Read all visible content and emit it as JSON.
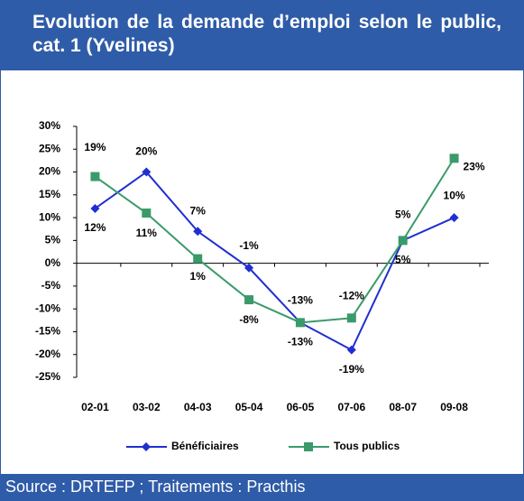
{
  "chart_data": {
    "type": "line",
    "title": "Evolution de la demande d’emploi selon le public, cat. 1 (Yvelines)",
    "source": "Source : DRTEFP ; Traitements : Practhis",
    "categories": [
      "02-01",
      "03-02",
      "04-03",
      "05-04",
      "06-05",
      "07-06",
      "08-07",
      "09-08"
    ],
    "series": [
      {
        "name": "Bénéficiaires",
        "color": "#1f2fd0",
        "marker": "diamond",
        "values": [
          12,
          20,
          7,
          -1,
          -13,
          -19,
          5,
          10
        ],
        "value_labels": [
          "12%",
          "20%",
          "7%",
          "-1%",
          "-13%",
          "-19%",
          "5%",
          "10%"
        ]
      },
      {
        "name": "Tous publics",
        "color": "#3a9a6a",
        "marker": "square",
        "values": [
          19,
          11,
          1,
          -8,
          -13,
          -12,
          5,
          23
        ],
        "value_labels": [
          "19%",
          "11%",
          "1%",
          "-8%",
          "-13%",
          "-12%",
          "5%",
          "23%"
        ]
      }
    ],
    "ylim": [
      -25,
      30
    ],
    "yticks": [
      {
        "value": -25,
        "label": "-25%"
      },
      {
        "value": -20,
        "label": "-20%"
      },
      {
        "value": -15,
        "label": "-15%"
      },
      {
        "value": -10,
        "label": "-10%"
      },
      {
        "value": -5,
        "label": "-5%"
      },
      {
        "value": 0,
        "label": "0%"
      },
      {
        "value": 5,
        "label": "5%"
      },
      {
        "value": 10,
        "label": "10%"
      },
      {
        "value": 15,
        "label": "15%"
      },
      {
        "value": 20,
        "label": "20%"
      },
      {
        "value": 25,
        "label": "25%"
      },
      {
        "value": 30,
        "label": "30%"
      }
    ]
  }
}
